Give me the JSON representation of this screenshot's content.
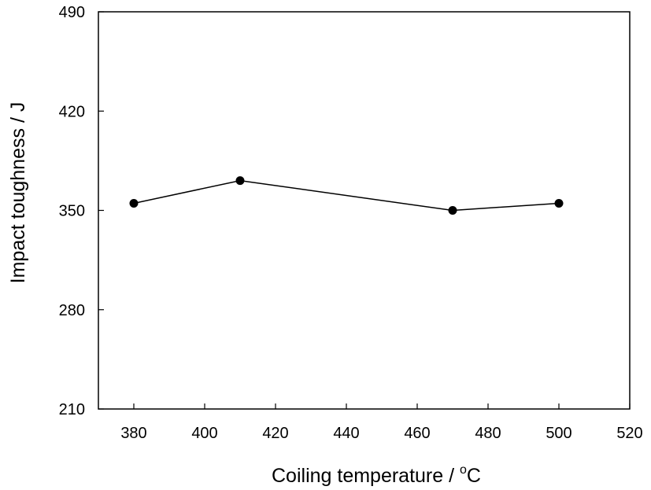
{
  "chart_data": {
    "type": "line",
    "title": "",
    "xlabel": "Coiling temperature / ",
    "xlabel_unit_sup": "o",
    "xlabel_unit": "C",
    "ylabel": "Impact toughness / J",
    "xlim": [
      370,
      520
    ],
    "ylim": [
      210,
      490
    ],
    "xticks": [
      380,
      400,
      420,
      440,
      460,
      480,
      500,
      520
    ],
    "yticks": [
      210,
      280,
      350,
      420,
      490
    ],
    "grid": false,
    "series": [
      {
        "x": [
          380,
          410,
          470,
          500
        ],
        "y": [
          355,
          371,
          350,
          355
        ],
        "color": "#000000",
        "marker": "circle"
      }
    ]
  }
}
